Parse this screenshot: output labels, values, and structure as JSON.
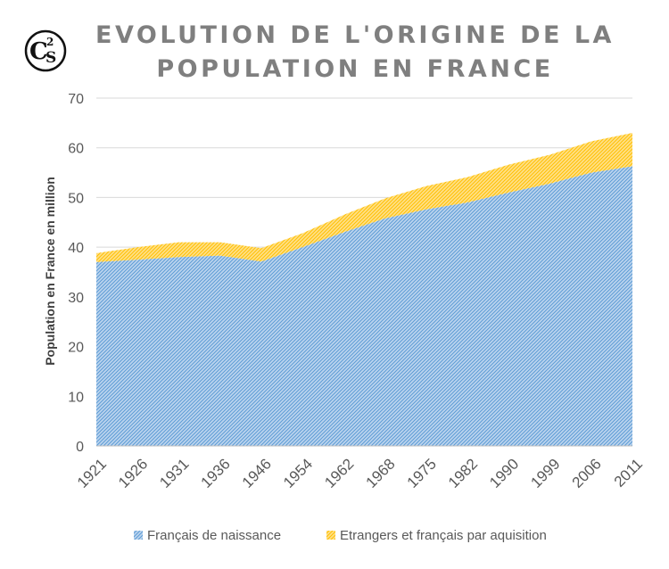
{
  "logo": {
    "text": "C2S"
  },
  "chart_data": {
    "type": "area",
    "stacked": true,
    "title_lines": [
      "EVOLUTION DE L'ORIGINE DE LA",
      "POPULATION EN FRANCE"
    ],
    "ylabel": "Population en France en million",
    "xlabel": "",
    "ylim": [
      0,
      70
    ],
    "yticks": [
      "0",
      "10",
      "20",
      "30",
      "40",
      "50",
      "60",
      "70"
    ],
    "grid": true,
    "legend_position": "bottom",
    "categories": [
      "1921",
      "1926",
      "1931",
      "1936",
      "1946",
      "1954",
      "1962",
      "1968",
      "1975",
      "1982",
      "1990",
      "1999",
      "2006",
      "2011"
    ],
    "series": [
      {
        "name": "Français de naissance",
        "color": "#5b9bd5",
        "values": [
          37.0,
          37.5,
          38.0,
          38.3,
          37.1,
          40.0,
          43.0,
          45.8,
          47.6,
          49.0,
          51.0,
          52.8,
          55.0,
          56.3
        ]
      },
      {
        "name": "Etrangers et français par aquisition",
        "color": "#ffc000",
        "values": [
          1.8,
          2.5,
          3.0,
          2.7,
          2.7,
          2.8,
          3.5,
          4.0,
          4.7,
          5.1,
          5.6,
          5.8,
          6.3,
          6.7
        ]
      }
    ]
  }
}
